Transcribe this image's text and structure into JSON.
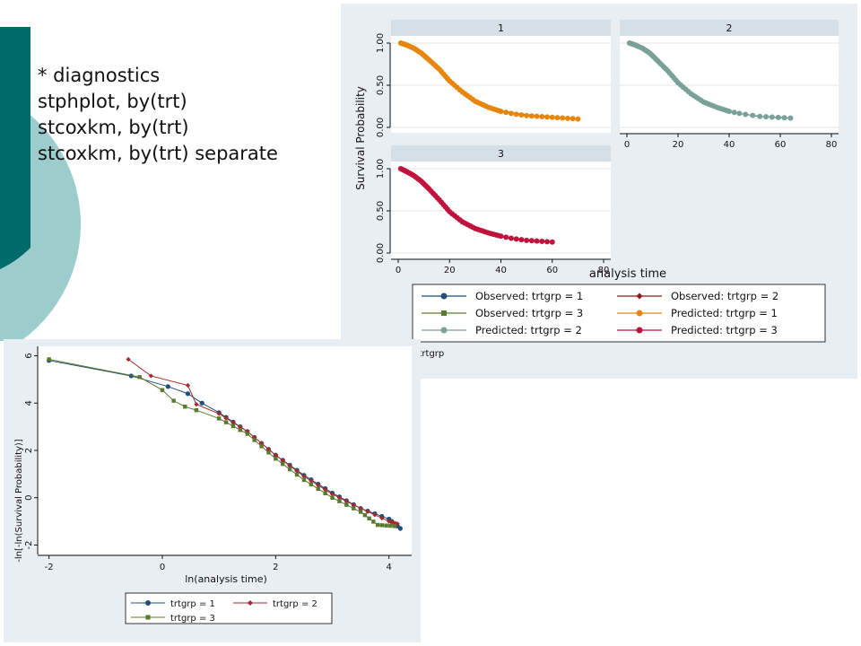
{
  "slide": {
    "code_lines": [
      "* diagnostics",
      "stphplot, by(trt)",
      "stcoxkm, by(trt)",
      "stcoxkm, by(trt) separate"
    ],
    "colors": {
      "teal_dark": "#006b6b",
      "teal_light": "#9ccccc",
      "stata_bg": "#e9eef3",
      "strip_bg": "#d5dfe7"
    }
  },
  "chart_data": [
    {
      "type": "line",
      "subtype": "observed vs predicted survival (stcoxkm, separate), facets by trtgrp",
      "facet_labels": [
        "1",
        "2",
        "3"
      ],
      "ylabel": "Survival Probability",
      "xlabel": "analysis time",
      "ylim": [
        0,
        1
      ],
      "xlim": [
        0,
        80
      ],
      "y_ticks": [
        "0.00",
        "0.50",
        "1.00"
      ],
      "x_ticks": [
        "0",
        "20",
        "40",
        "60",
        "80"
      ],
      "note": "Graphs by trtgrp",
      "legend": [
        {
          "label": "Observed: trtgrp = 1",
          "color": "#1f4e79",
          "marker": "circle"
        },
        {
          "label": "Observed: trtgrp = 2",
          "color": "#8b1a1a",
          "marker": "diamond"
        },
        {
          "label": "Observed: trtgrp = 3",
          "color": "#5a7a2e",
          "marker": "square"
        },
        {
          "label": "Predicted: trtgrp = 1",
          "color": "#e8860c",
          "marker": "circle"
        },
        {
          "label": "Predicted: trtgrp = 2",
          "color": "#7aa09a",
          "marker": "circle"
        },
        {
          "label": "Predicted: trtgrp = 3",
          "color": "#c0123c",
          "marker": "circle"
        }
      ],
      "panels": [
        {
          "facet": "1",
          "predicted_color": "#e8860c",
          "observed_color": "#1f4e79",
          "x": [
            1,
            3,
            6,
            9,
            12,
            16,
            20,
            25,
            30,
            35,
            40,
            45,
            50,
            55,
            60,
            65,
            70
          ],
          "predicted": [
            1.0,
            0.98,
            0.94,
            0.88,
            0.8,
            0.69,
            0.55,
            0.42,
            0.31,
            0.24,
            0.19,
            0.16,
            0.14,
            0.13,
            0.12,
            0.11,
            0.1
          ],
          "observed": [
            1.0,
            0.97,
            0.93,
            0.87,
            0.79,
            0.68,
            0.54,
            0.41,
            0.31,
            0.25,
            0.2,
            0.17,
            0.15,
            0.13,
            0.12,
            0.11,
            0.1
          ]
        },
        {
          "facet": "2",
          "predicted_color": "#7aa09a",
          "observed_color": "#8b1a1a",
          "x": [
            1,
            3,
            6,
            9,
            12,
            16,
            20,
            25,
            30,
            35,
            40,
            45,
            52,
            58,
            64
          ],
          "predicted": [
            1.0,
            0.98,
            0.94,
            0.88,
            0.79,
            0.67,
            0.53,
            0.4,
            0.3,
            0.24,
            0.19,
            0.16,
            0.13,
            0.12,
            0.11
          ],
          "observed": [
            1.0,
            0.97,
            0.93,
            0.87,
            0.78,
            0.66,
            0.52,
            0.39,
            0.3,
            0.24,
            0.19,
            0.16,
            0.13,
            0.12,
            0.11
          ]
        },
        {
          "facet": "3",
          "predicted_color": "#c0123c",
          "observed_color": "#5a7a2e",
          "x": [
            1,
            3,
            6,
            9,
            12,
            16,
            20,
            25,
            30,
            35,
            40,
            45,
            50,
            55,
            60
          ],
          "predicted": [
            1.0,
            0.97,
            0.92,
            0.85,
            0.76,
            0.63,
            0.49,
            0.37,
            0.29,
            0.24,
            0.2,
            0.17,
            0.15,
            0.14,
            0.13
          ],
          "observed": [
            1.0,
            0.96,
            0.91,
            0.84,
            0.75,
            0.62,
            0.48,
            0.36,
            0.28,
            0.23,
            0.19,
            0.17,
            0.15,
            0.14,
            0.13
          ]
        }
      ]
    },
    {
      "type": "line",
      "subtype": "log-minus-log survival plot (stphplot)",
      "xlabel": "ln(analysis time)",
      "ylabel": "-ln[-ln(Survival Probability)]",
      "xlim": [
        -2.2,
        4.4
      ],
      "ylim": [
        -2.4,
        6.4
      ],
      "x_ticks": [
        "-2",
        "0",
        "2",
        "4"
      ],
      "y_ticks": [
        "-2",
        "0",
        "2",
        "4",
        "6"
      ],
      "series": [
        {
          "name": "trtgrp = 1",
          "color": "#1f4e79",
          "marker": "circle",
          "x": [
            -2.0,
            -0.55,
            0.1,
            0.45,
            0.7,
            1.0,
            1.5,
            2.0,
            2.5,
            3.0,
            3.5,
            4.0,
            4.2
          ],
          "y": [
            5.8,
            5.15,
            4.7,
            4.4,
            4.0,
            3.6,
            2.8,
            1.8,
            0.95,
            0.2,
            -0.45,
            -0.9,
            -1.3
          ]
        },
        {
          "name": "trtgrp = 2",
          "color": "#a8282f",
          "marker": "diamond",
          "x": [
            -0.6,
            -0.2,
            0.45,
            0.6,
            1.0,
            1.5,
            2.0,
            2.5,
            3.0,
            3.5,
            4.0,
            4.15
          ],
          "y": [
            5.85,
            5.15,
            4.75,
            3.95,
            3.55,
            2.8,
            1.8,
            0.9,
            0.15,
            -0.45,
            -1.0,
            -1.1
          ]
        },
        {
          "name": "trtgrp = 3",
          "color": "#5a7a2e",
          "marker": "square",
          "x": [
            -2.0,
            -0.4,
            0.0,
            0.2,
            0.4,
            0.6,
            1.0,
            1.5,
            2.0,
            2.5,
            3.0,
            3.5,
            3.8,
            4.1
          ],
          "y": [
            5.85,
            5.1,
            4.55,
            4.1,
            3.85,
            3.7,
            3.35,
            2.7,
            1.65,
            0.75,
            0.0,
            -0.6,
            -1.15,
            -1.2
          ]
        }
      ],
      "legend": [
        "trtgrp = 1",
        "trtgrp = 2",
        "trtgrp = 3"
      ]
    }
  ]
}
